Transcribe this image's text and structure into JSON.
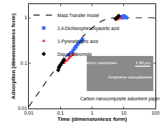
{
  "chart_data": {
    "type": "scatter",
    "x_label": "Time (dimensionless form)",
    "y_label": "Adsorption (dimensionless form)",
    "log": true,
    "grid": false,
    "legend": "top left",
    "xlim": [
      0.01,
      100
    ],
    "xticks": [
      0.01,
      0.1,
      1,
      10,
      100
    ],
    "ylim": [
      0.01,
      2
    ],
    "yticks": [
      0.01,
      0.1,
      1
    ],
    "series": [
      {
        "name": "Mass Transfer model",
        "type": "line",
        "line_style": "dash",
        "color": "#000000",
        "x": [
          0.01,
          0.02,
          0.05,
          0.1,
          0.2,
          0.5,
          1,
          2,
          3,
          5,
          10,
          100
        ],
        "values": [
          0.011,
          0.022,
          0.055,
          0.1,
          0.18,
          0.38,
          0.6,
          0.85,
          0.95,
          1.0,
          1.0,
          1.0
        ]
      },
      {
        "name": "2,4-Dichlorophenoxyacetic acid",
        "type": "scatter",
        "marker": "square",
        "color": "#3366ff",
        "x": [
          0.19,
          0.22,
          0.25,
          0.28,
          0.31,
          0.35,
          0.4,
          0.45,
          0.5,
          8,
          9,
          10,
          11,
          12
        ],
        "values": [
          0.15,
          0.17,
          0.19,
          0.21,
          0.23,
          0.26,
          0.29,
          0.31,
          0.33,
          1.05,
          1.0,
          1.1,
          1.05,
          1.0
        ]
      },
      {
        "name": "1-Pyrenebutyric acid",
        "type": "scatter",
        "marker": "triangle-up",
        "color": "#e8283c",
        "x": [
          0.13,
          0.15,
          0.17,
          0.19,
          0.21,
          0.24,
          0.26,
          6,
          6.5,
          7,
          8
        ],
        "values": [
          0.1,
          0.11,
          0.12,
          0.13,
          0.14,
          0.15,
          0.16,
          0.9,
          1.1,
          0.95,
          1.0
        ]
      },
      {
        "name": "Diquat Dibromide",
        "type": "scatter",
        "marker": "diamond",
        "color": "#000000",
        "x": [
          0.085,
          0.09,
          0.1,
          0.11,
          0.12,
          0.13,
          5.5,
          6,
          6.5,
          7
        ],
        "values": [
          0.07,
          0.08,
          0.09,
          0.1,
          0.11,
          0.12,
          0.95,
          1.0,
          1.05,
          1.1
        ]
      }
    ],
    "annotations": [
      "Carbon nanotubes",
      "1.50 μm",
      "Graphene nanoplatelets",
      "Carbon nanocomposite adsorbent paper"
    ]
  }
}
